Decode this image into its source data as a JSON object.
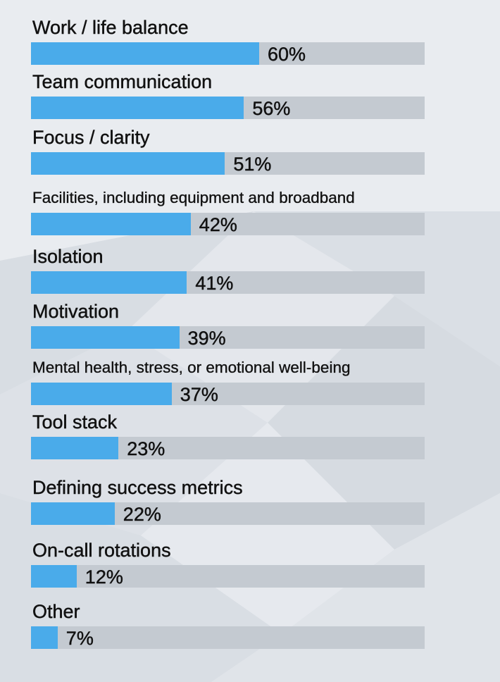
{
  "chart_data": {
    "type": "bar",
    "orientation": "horizontal",
    "categories": [
      "Work / life balance",
      "Team communication",
      "Focus / clarity",
      "Facilities, including equipment and broadband",
      "Isolation",
      "Motivation",
      "Mental health, stress, or emotional well-being",
      "Tool stack",
      "Defining success metrics",
      "On-call rotations",
      "Other"
    ],
    "values": [
      60,
      56,
      51,
      42,
      41,
      39,
      37,
      23,
      22,
      12,
      7
    ],
    "value_labels": [
      "60%",
      "56%",
      "51%",
      "42%",
      "41%",
      "39%",
      "37%",
      "23%",
      "22%",
      "12%",
      "7%"
    ],
    "xlim": [
      0,
      100
    ],
    "unit": "%",
    "grid": false,
    "legend": "none"
  },
  "colors": {
    "bar_fill": "#4aabea",
    "bar_track": "#c4cad1",
    "background": "#e2e6eb",
    "background_facet_light": "#eceef2",
    "background_facet_dark": "#d3d8de"
  }
}
